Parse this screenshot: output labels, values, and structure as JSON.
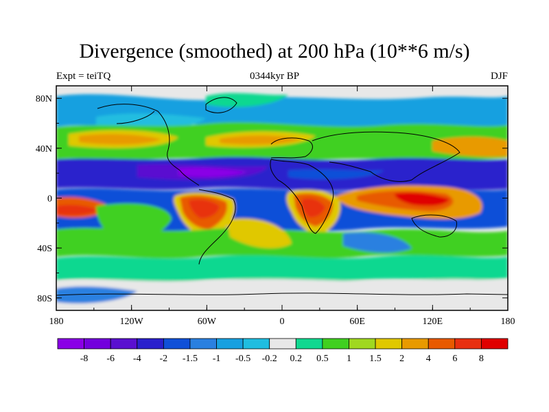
{
  "title": "Divergence (smoothed) at 200 hPa (10**6 m/s)",
  "subtitle_left": "Expt = teiTQ",
  "subtitle_center": "0344kyr BP",
  "subtitle_right": "DJF",
  "lat_labels": [
    {
      "label": "80N",
      "lat": 80
    },
    {
      "label": "40N",
      "lat": 40
    },
    {
      "label": "0",
      "lat": 0
    },
    {
      "label": "40S",
      "lat": -40
    },
    {
      "label": "80S",
      "lat": -80
    }
  ],
  "lon_labels": [
    {
      "label": "180",
      "lon": -180
    },
    {
      "label": "120W",
      "lon": -120
    },
    {
      "label": "60W",
      "lon": -60
    },
    {
      "label": "0",
      "lon": 0
    },
    {
      "label": "60E",
      "lon": 60
    },
    {
      "label": "120E",
      "lon": 120
    },
    {
      "label": "180",
      "lon": 180
    }
  ],
  "colorbar": {
    "levels": [
      "-8",
      "-6",
      "-4",
      "-2",
      "-1.5",
      "-1",
      "-0.5",
      "-0.2",
      "0.2",
      "0.5",
      "1",
      "1.5",
      "2",
      "4",
      "6",
      "8"
    ],
    "colors": [
      "#8a00e6",
      "#7300dd",
      "#5a10d0",
      "#2a20cc",
      "#1050d8",
      "#2a80e0",
      "#18a0e0",
      "#20bde0",
      "#e8e8e8",
      "#10d890",
      "#40d020",
      "#a0d820",
      "#e0c800",
      "#e89a00",
      "#e85a00",
      "#e83010",
      "#e00000"
    ]
  },
  "chart_data": {
    "type": "heatmap",
    "title": "Divergence (smoothed) at 200 hPa (10**6 m/s)",
    "variable": "divergence",
    "units": "10**6 m/s",
    "pressure_level": "200 hPa",
    "season": "DJF",
    "experiment": "teiTQ",
    "period": "0344kyr BP",
    "xlim": [
      -180,
      180
    ],
    "ylim": [
      -90,
      90
    ],
    "bands": [
      {
        "lat_range": [
          60,
          80
        ],
        "level": "-0.5 to -1.5",
        "note": "blue band over northern high latitudes"
      },
      {
        "lat_range": [
          30,
          45
        ],
        "level": "2 to 4",
        "note": "orange/yellow over N Pacific and N Atlantic"
      },
      {
        "lat_range": [
          5,
          20
        ],
        "level": "-2 to -8",
        "note": "strong convergence belt along northern tropics"
      },
      {
        "lat_range": [
          -30,
          0
        ],
        "level": "4 to 8",
        "note": "divergence maxima over S America, Africa, Maritime Continent"
      },
      {
        "lat_range": [
          -50,
          -30
        ],
        "level": "-1 to -2",
        "note": "blue patches in southern subtropics"
      },
      {
        "lat_range": [
          -70,
          -55
        ],
        "level": "0.5 to 1",
        "note": "green band over Southern Ocean"
      }
    ]
  }
}
